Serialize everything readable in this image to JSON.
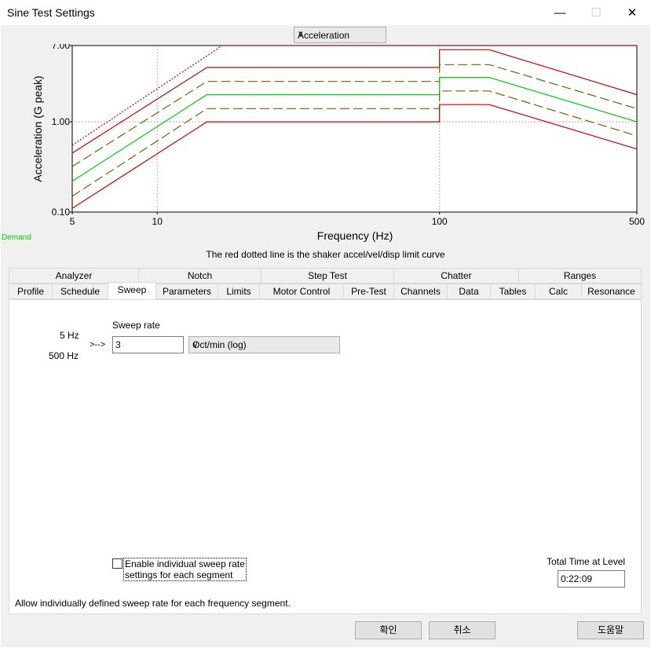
{
  "window": {
    "title": "Sine Test Settings"
  },
  "view_selector": {
    "value": "Acceleration"
  },
  "chart_data": {
    "type": "line",
    "xscale": "log",
    "yscale": "log",
    "xlim": [
      5,
      500
    ],
    "ylim": [
      0.1,
      7.0
    ],
    "xlabel": "Frequency (Hz)",
    "ylabel": "Acceleration (G peak)",
    "x_ticks": [
      "5",
      "10",
      "100",
      "500"
    ],
    "y_ticks": [
      "0.10",
      "1.00",
      "7.00"
    ],
    "grid": true,
    "series": [
      {
        "style": "dotted",
        "color": "#cc0000",
        "x": [
          5,
          17,
          500
        ],
        "y": [
          0.55,
          7.0,
          7.0
        ]
      },
      {
        "style": "solid",
        "color": "#cc0000",
        "x": [
          5,
          15,
          100,
          100,
          150,
          500
        ],
        "y": [
          0.45,
          4.0,
          4.0,
          6.3,
          6.3,
          2.0
        ]
      },
      {
        "style": "dashed",
        "color": "#666600",
        "x": [
          5,
          15,
          100,
          100,
          150,
          500
        ],
        "y": [
          0.32,
          2.8,
          2.8,
          4.3,
          4.3,
          1.4
        ]
      },
      {
        "style": "solid",
        "color": "#00cc00",
        "x": [
          5,
          15,
          100,
          100,
          150,
          500
        ],
        "y": [
          0.22,
          2.0,
          2.0,
          3.1,
          3.1,
          1.0
        ]
      },
      {
        "style": "dashed",
        "color": "#666600",
        "x": [
          5,
          15,
          100,
          100,
          150,
          500
        ],
        "y": [
          0.15,
          1.4,
          1.4,
          2.2,
          2.2,
          0.7
        ]
      },
      {
        "style": "solid",
        "color": "#cc0000",
        "x": [
          5,
          15,
          100,
          100,
          150,
          500
        ],
        "y": [
          0.11,
          1.0,
          1.0,
          1.55,
          1.55,
          0.5
        ]
      }
    ]
  },
  "legend": {
    "demand_label": "Demand"
  },
  "limit_note": "The red dotted line is the shaker accel/vel/disp limit curve",
  "tabs_row1": [
    "Analyzer",
    "Notch",
    "Step Test",
    "Chatter",
    "Ranges"
  ],
  "tabs_row2": [
    "Profile",
    "Schedule",
    "Sweep",
    "Parameters",
    "Limits",
    "Motor Control",
    "Pre-Test",
    "Channels",
    "Data",
    "Tables",
    "Calc",
    "Resonance"
  ],
  "sweep": {
    "rate_label": "Sweep rate",
    "start_freq": "5 Hz",
    "end_freq": "500 Hz",
    "arrow": ">-->",
    "rate_value": "3",
    "rate_unit": "Oct/min (log)",
    "enable_label_line1": "Enable individual sweep rate",
    "enable_label_line2": "settings for each segment",
    "enable_checked": false,
    "total_time_label": "Total Time at Level",
    "total_time_value": "0:22:09",
    "hint": "Allow individually defined sweep rate for each frequency segment."
  },
  "buttons": {
    "ok": "확인",
    "cancel": "취소",
    "help": "도움말"
  }
}
